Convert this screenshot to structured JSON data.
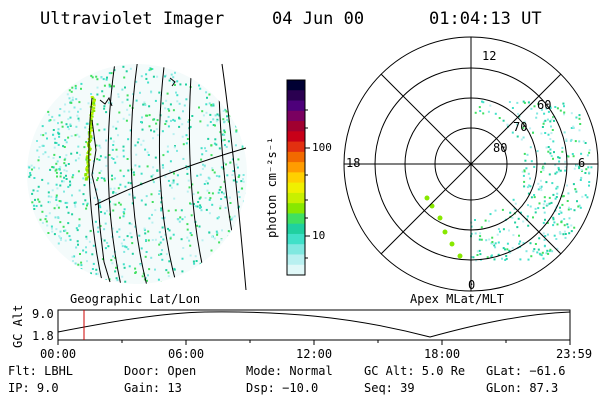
{
  "header": {
    "title": "Ultraviolet Imager",
    "date": "04 Jun 00",
    "time": "01:04:13 UT"
  },
  "left_panel": {
    "caption": "Geographic Lat/Lon"
  },
  "right_panel": {
    "caption": "Apex MLat/MLT",
    "mlt_labels": [
      "12",
      "18",
      "6",
      "0"
    ],
    "lat_labels": [
      "60",
      "70",
      "80"
    ]
  },
  "colorbar": {
    "unit_label": "photon cm⁻²s⁻¹",
    "ticks": [
      "100",
      "10"
    ],
    "colors": [
      "#000033",
      "#2a0050",
      "#4d007a",
      "#7a0060",
      "#a00030",
      "#c80018",
      "#e23010",
      "#f26a00",
      "#ff9c00",
      "#ffd000",
      "#f0f000",
      "#c8f000",
      "#88e800",
      "#40e060",
      "#20d0a0",
      "#40e0c8",
      "#80e8e0",
      "#b8f0f0",
      "#e0f8f8"
    ]
  },
  "timeline": {
    "axis_label": "GC Alt",
    "y_ticks": [
      "9.0",
      "1.8"
    ],
    "x_ticks": [
      "00:00",
      "06:00",
      "12:00",
      "18:00",
      "23:59"
    ],
    "marker_color": "#cc0000"
  },
  "info": {
    "col1": [
      "Flt: LBHL",
      "IP:  9.0"
    ],
    "col2": [
      "Door: Open",
      "Gain: 13"
    ],
    "col3": [
      "Mode: Normal",
      "Dsp:  −10.0"
    ],
    "col4": [
      "GC Alt: 5.0 Re",
      "Seq: 39"
    ],
    "col5": [
      "GLat: −61.6",
      "GLon:  87.3"
    ]
  }
}
